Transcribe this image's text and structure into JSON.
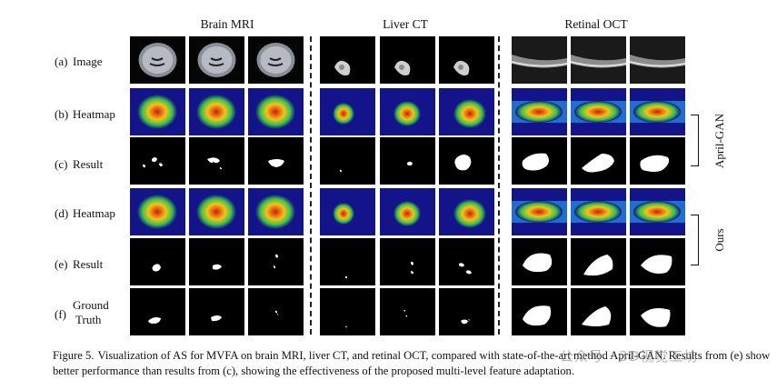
{
  "columns": [
    {
      "title": "Brain MRI"
    },
    {
      "title": "Liver CT"
    },
    {
      "title": "Retinal OCT"
    }
  ],
  "rows": [
    {
      "tag": "(a)",
      "label": "Image"
    },
    {
      "tag": "(b)",
      "label": "Heatmap"
    },
    {
      "tag": "(c)",
      "label": "Result"
    },
    {
      "tag": "(d)",
      "label": "Heatmap"
    },
    {
      "tag": "(e)",
      "label": "Result"
    },
    {
      "tag": "(f)",
      "label": "Ground",
      "label2": "Truth"
    }
  ],
  "groups": [
    {
      "label": "April-GAN"
    },
    {
      "label": "Ours"
    }
  ],
  "caption": {
    "figure": "Figure 5.",
    "text": "Visualization of AS for MVFA on brain MRI, liver CT, and retinal OCT, compared with state-of-the-art method April-GAN. Results from (e) show better performance than results from (c), showing the effectiveness of the proposed multi-level feature adaptation."
  },
  "watermark": "公众号 · 3D视觉工坊"
}
